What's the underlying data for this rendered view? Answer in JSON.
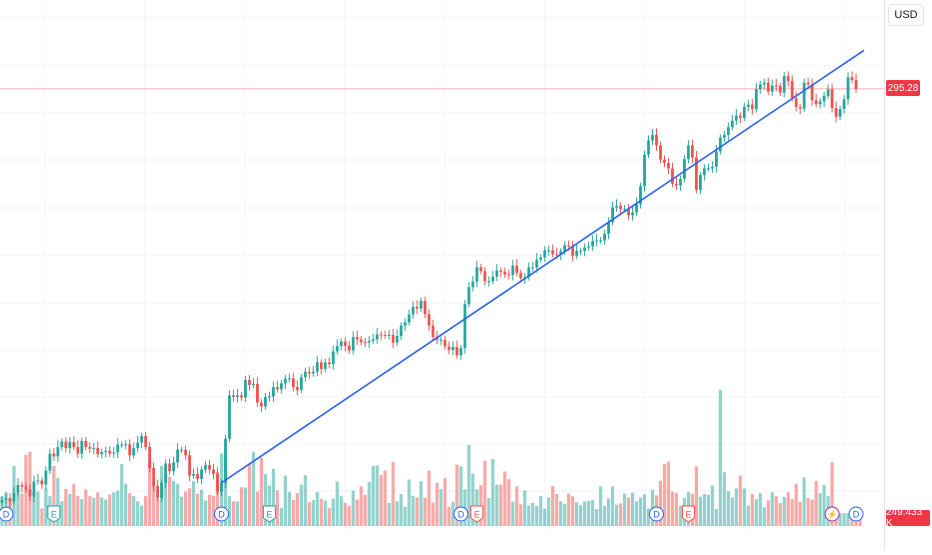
{
  "header": {
    "currency_label": "USD"
  },
  "price_axis": {
    "last_price_label": "295.28",
    "last_volume_label": "249.433 K"
  },
  "colors": {
    "up": "#26a69a",
    "down": "#ef5350",
    "trendline": "#2962ff",
    "last_price_line": "#f23645",
    "grid": "#f0f3fa"
  },
  "event_markers": [
    {
      "kind": "dividend",
      "glyph": "D",
      "x_index": 1
    },
    {
      "kind": "earnings",
      "glyph": "E",
      "x_index": 13
    },
    {
      "kind": "dividend",
      "glyph": "D",
      "x_index": 55
    },
    {
      "kind": "earnings",
      "glyph": "E",
      "x_index": 67
    },
    {
      "kind": "dividend",
      "glyph": "D",
      "x_index": 115
    },
    {
      "kind": "earnings-negative",
      "glyph": "E",
      "x_index": 119
    },
    {
      "kind": "dividend",
      "glyph": "D",
      "x_index": 164
    },
    {
      "kind": "earnings-negative",
      "glyph": "E",
      "x_index": 172
    },
    {
      "kind": "split",
      "glyph": "⚡",
      "x_index": 208
    },
    {
      "kind": "dividend",
      "glyph": "D",
      "x_index": 214
    }
  ],
  "chart_data": {
    "type": "candlestick",
    "x_count": 218,
    "ylim": [
      215,
      310
    ],
    "trendline": {
      "from": {
        "x_index": 55,
        "price": 223.6
      },
      "to": {
        "x_index": 216,
        "price": 302.3
      }
    },
    "last_price": 295.28,
    "ohlc_close": [
      220.5,
      220.8,
      220.2,
      221.8,
      223.2,
      222.9,
      222.4,
      221.1,
      223.8,
      224.0,
      223.3,
      225.8,
      228.9,
      228.4,
      230.1,
      231.1,
      229.9,
      231.0,
      230.1,
      228.9,
      231.2,
      230.1,
      229.8,
      229.9,
      228.8,
      229.2,
      229.4,
      228.9,
      229.1,
      230.5,
      230.5,
      230.6,
      228.6,
      229.9,
      230.9,
      232.1,
      230.1,
      226.3,
      223.0,
      220.8,
      223.6,
      227.1,
      225.7,
      227.3,
      229.6,
      229.6,
      228.6,
      224.9,
      225.2,
      224.3,
      226.0,
      226.8,
      226.0,
      225.2,
      222.0,
      223.6,
      231.6,
      239.5,
      239.2,
      239.5,
      239.1,
      242.3,
      241.4,
      241.6,
      238.2,
      237.5,
      239.2,
      239.3,
      241.0,
      240.6,
      241.7,
      242.5,
      242.6,
      241.0,
      240.5,
      242.8,
      243.8,
      243.5,
      243.8,
      245.5,
      244.3,
      245.5,
      245.2,
      247.5,
      248.5,
      249.3,
      248.5,
      247.7,
      250.1,
      249.7,
      249.2,
      249.1,
      249.4,
      249.7,
      250.6,
      250.5,
      250.4,
      250.5,
      249.1,
      250.3,
      252.2,
      252.8,
      254.2,
      255.6,
      255.3,
      256.7,
      254.3,
      252.2,
      250.1,
      249.6,
      249.6,
      248.4,
      247.8,
      248.3,
      246.8,
      248.1,
      256.1,
      259.2,
      260.2,
      262.8,
      262.1,
      260.3,
      260.3,
      261.1,
      262.2,
      262.0,
      261.5,
      261.4,
      263.1,
      261.8,
      260.8,
      261.0,
      262.8,
      262.8,
      264.2,
      264.6,
      265.9,
      265.9,
      265.2,
      265.1,
      265.7,
      266.8,
      266.6,
      264.9,
      265.8,
      265.8,
      266.4,
      266.6,
      267.6,
      267.7,
      267.7,
      268.9,
      271.0,
      273.7,
      274.0,
      273.4,
      273.4,
      272.3,
      272.8,
      274.3,
      277.6,
      283.3,
      285.9,
      286.9,
      285.0,
      282.4,
      281.8,
      280.8,
      278.0,
      277.7,
      278.9,
      282.5,
      285.0,
      282.8,
      276.9,
      279.6,
      280.8,
      280.8,
      281.1,
      283.9,
      286.4,
      286.9,
      288.3,
      289.5,
      290.4,
      290.0,
      292.0,
      292.4,
      291.6,
      295.2,
      296.1,
      296.4,
      294.8,
      295.9,
      295.8,
      294.6,
      297.6,
      296.7,
      293.6,
      292.0,
      291.7,
      296.4,
      296.1,
      293.2,
      292.5,
      293.0,
      294.0,
      295.2,
      291.8,
      290.2,
      291.6,
      293.4,
      297.4,
      296.9,
      295.3
    ],
    "volume": [
      70,
      80,
      63,
      141,
      78,
      76,
      167,
      174,
      78,
      81,
      41,
      88,
      70,
      141,
      113,
      58,
      87,
      75,
      98,
      70,
      63,
      86,
      70,
      66,
      79,
      67,
      62,
      74,
      79,
      83,
      145,
      99,
      77,
      70,
      58,
      48,
      70,
      157,
      104,
      63,
      141,
      119,
      116,
      106,
      99,
      69,
      81,
      89,
      106,
      76,
      85,
      60,
      73,
      71,
      127,
      170,
      167,
      70,
      58,
      58,
      91,
      90,
      146,
      174,
      81,
      160,
      122,
      95,
      134,
      84,
      42,
      118,
      80,
      61,
      77,
      97,
      119,
      56,
      61,
      80,
      64,
      60,
      42,
      64,
      104,
      70,
      54,
      47,
      83,
      62,
      93,
      73,
      103,
      141,
      142,
      120,
      130,
      54,
      150,
      58,
      75,
      45,
      109,
      71,
      67,
      105,
      66,
      130,
      55,
      101,
      87,
      112,
      45,
      57,
      144,
      140,
      86,
      190,
      123,
      86,
      96,
      153,
      66,
      157,
      97,
      97,
      128,
      110,
      57,
      93,
      51,
      83,
      48,
      54,
      47,
      70,
      41,
      67,
      94,
      75,
      58,
      52,
      76,
      70,
      56,
      49,
      58,
      59,
      61,
      40,
      93,
      47,
      65,
      93,
      50,
      53,
      76,
      67,
      78,
      58,
      67,
      74,
      41,
      85,
      72,
      106,
      146,
      151,
      81,
      78,
      47,
      66,
      80,
      75,
      140,
      69,
      75,
      73,
      95,
      40,
      319,
      126,
      82,
      67,
      88,
      118,
      88,
      48,
      75,
      63,
      77,
      44,
      60,
      79,
      70,
      54,
      68,
      79,
      63,
      99,
      57,
      114,
      66,
      62,
      106,
      77,
      96,
      70,
      150,
      30,
      30,
      30,
      30,
      30,
      30,
      30
    ],
    "volume_max_label": "249.433 K"
  }
}
